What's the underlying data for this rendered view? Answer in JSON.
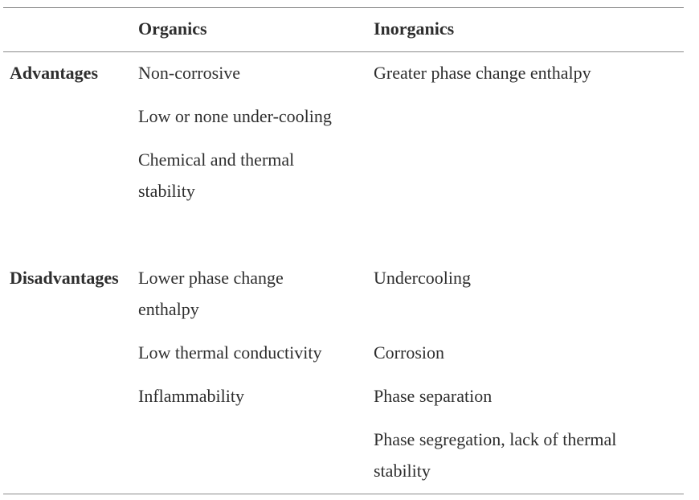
{
  "table": {
    "headers": [
      "",
      "Organics",
      "Inorganics"
    ],
    "rows": [
      {
        "label": "Advantages",
        "organics": [
          "Non-corrosive",
          "Low or none under-cooling",
          "Chemical and thermal stability"
        ],
        "inorganics": [
          "Greater phase change enthalpy"
        ]
      },
      {
        "label": "Disadvantages",
        "organics": [
          "Lower phase change enthalpy",
          "Low thermal conductivity",
          "Inflammability"
        ],
        "inorganics": [
          "Undercooling",
          "Corrosion",
          "Phase separation",
          "Phase segregation, lack of thermal stability"
        ]
      }
    ]
  }
}
